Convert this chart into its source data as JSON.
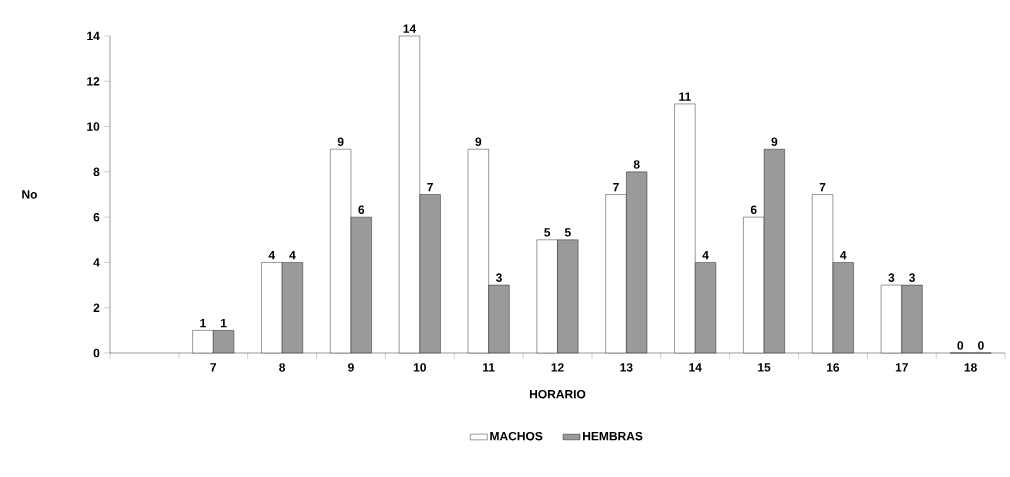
{
  "chart_data": {
    "type": "bar",
    "xlabel": "HORARIO",
    "ylabel": "No",
    "categories": [
      null,
      "7",
      "8",
      "9",
      "10",
      "11",
      "12",
      "13",
      "14",
      "15",
      "16",
      "17",
      "18"
    ],
    "series": [
      {
        "name": "MACHOS",
        "color": "#ffffff",
        "values": [
          null,
          1,
          4,
          9,
          14,
          9,
          5,
          7,
          11,
          6,
          7,
          3,
          0
        ]
      },
      {
        "name": "HEMBRAS",
        "color": "#9a9a9a",
        "values": [
          null,
          1,
          4,
          6,
          7,
          3,
          5,
          8,
          4,
          9,
          4,
          3,
          0
        ]
      }
    ],
    "ylim": [
      0,
      14
    ],
    "yticks": [
      0,
      2,
      4,
      6,
      8,
      10,
      12,
      14
    ],
    "grid": false,
    "legend": "bottom",
    "data_labels": true
  }
}
